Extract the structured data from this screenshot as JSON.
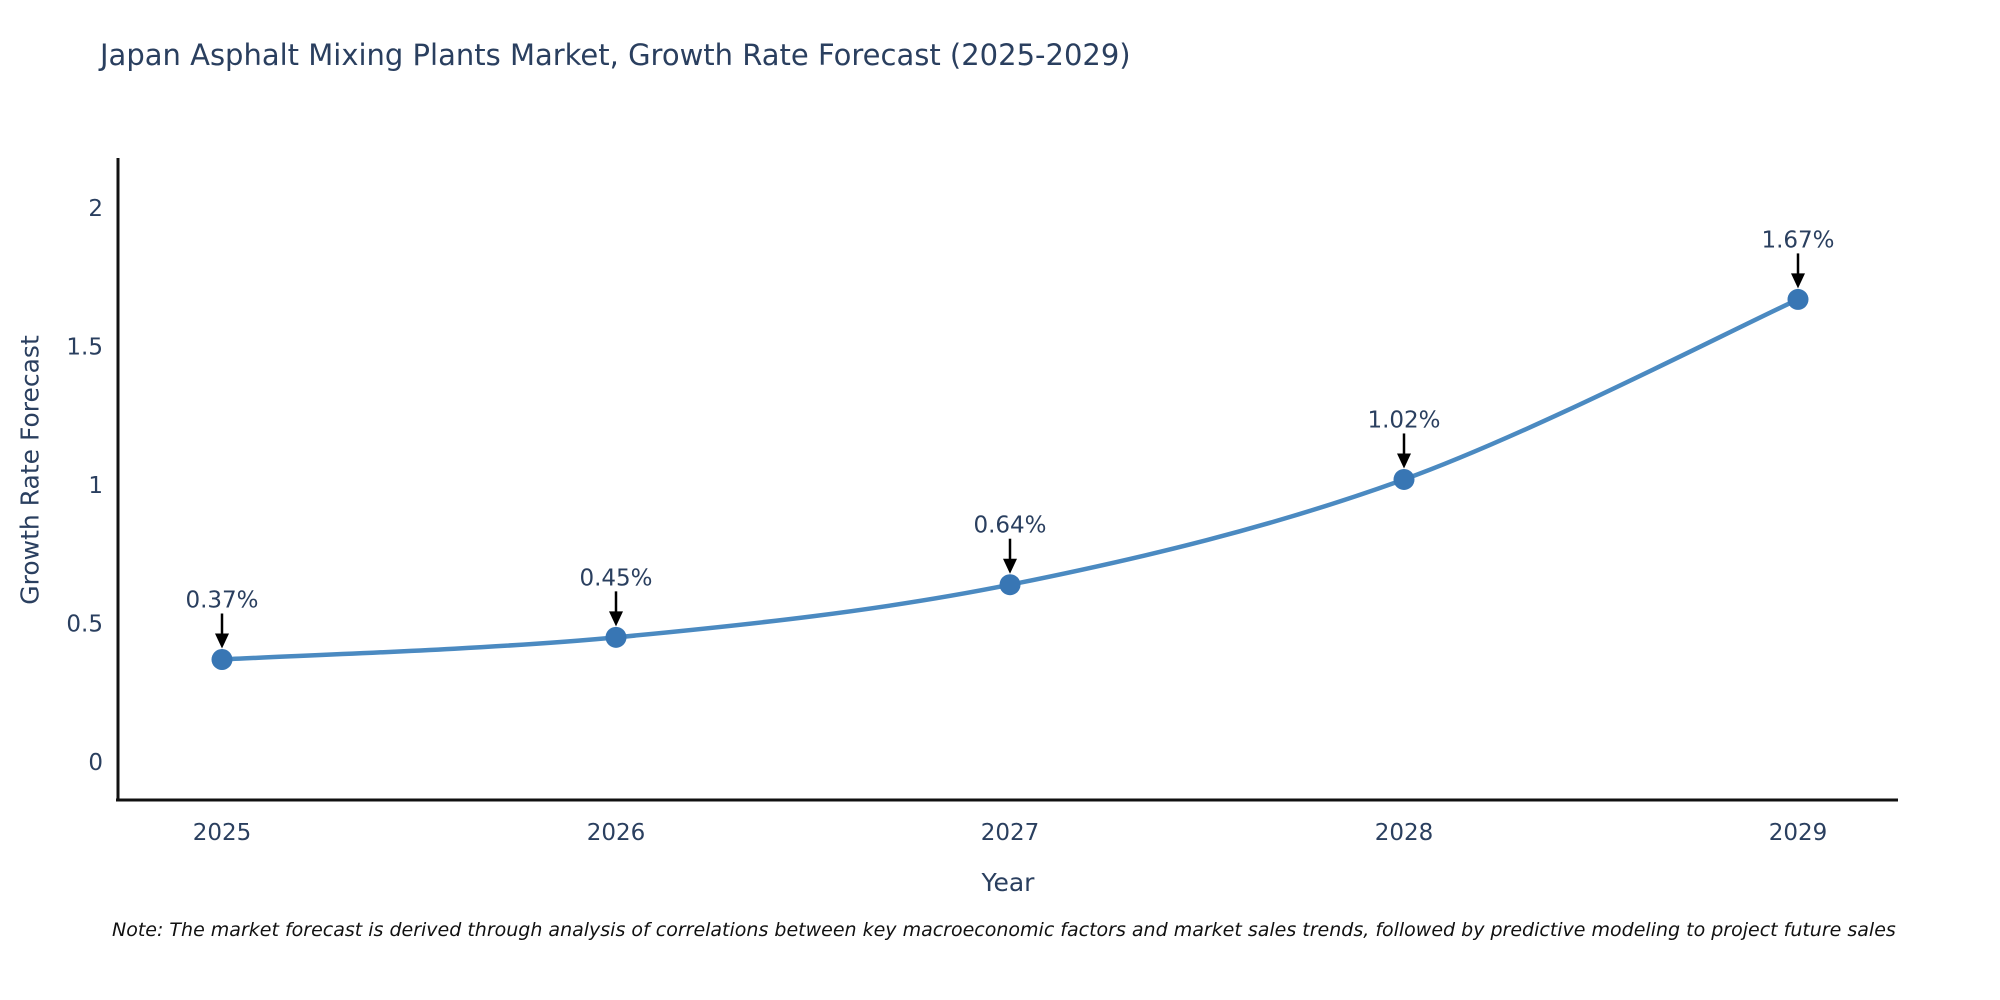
{
  "chart_data": {
    "type": "line",
    "title": "Japan Asphalt Mixing Plants Market, Growth Rate Forecast (2025-2029)",
    "xlabel": "Year",
    "ylabel": "Growth Rate Forecast",
    "x": [
      2025,
      2026,
      2027,
      2028,
      2029
    ],
    "series": [
      {
        "name": "Growth Rate Forecast",
        "values": [
          0.37,
          0.45,
          0.64,
          1.02,
          1.67
        ]
      }
    ],
    "point_labels": [
      "0.37%",
      "0.45%",
      "0.64%",
      "1.02%",
      "1.67%"
    ],
    "yticks": [
      0,
      0.5,
      1,
      1.5,
      2
    ],
    "ylim": [
      -0.14,
      2.18
    ],
    "grid": false,
    "legend": "none",
    "line_color": "#4b8ac1",
    "marker_color": "#3876b4",
    "axis_color": "#111111",
    "arrow_color": "#000000",
    "text_color": "#2a3f5f"
  },
  "note": "Note: The market forecast is derived through analysis of correlations between key macroeconomic factors and market sales trends, followed by predictive modeling to project future sales"
}
